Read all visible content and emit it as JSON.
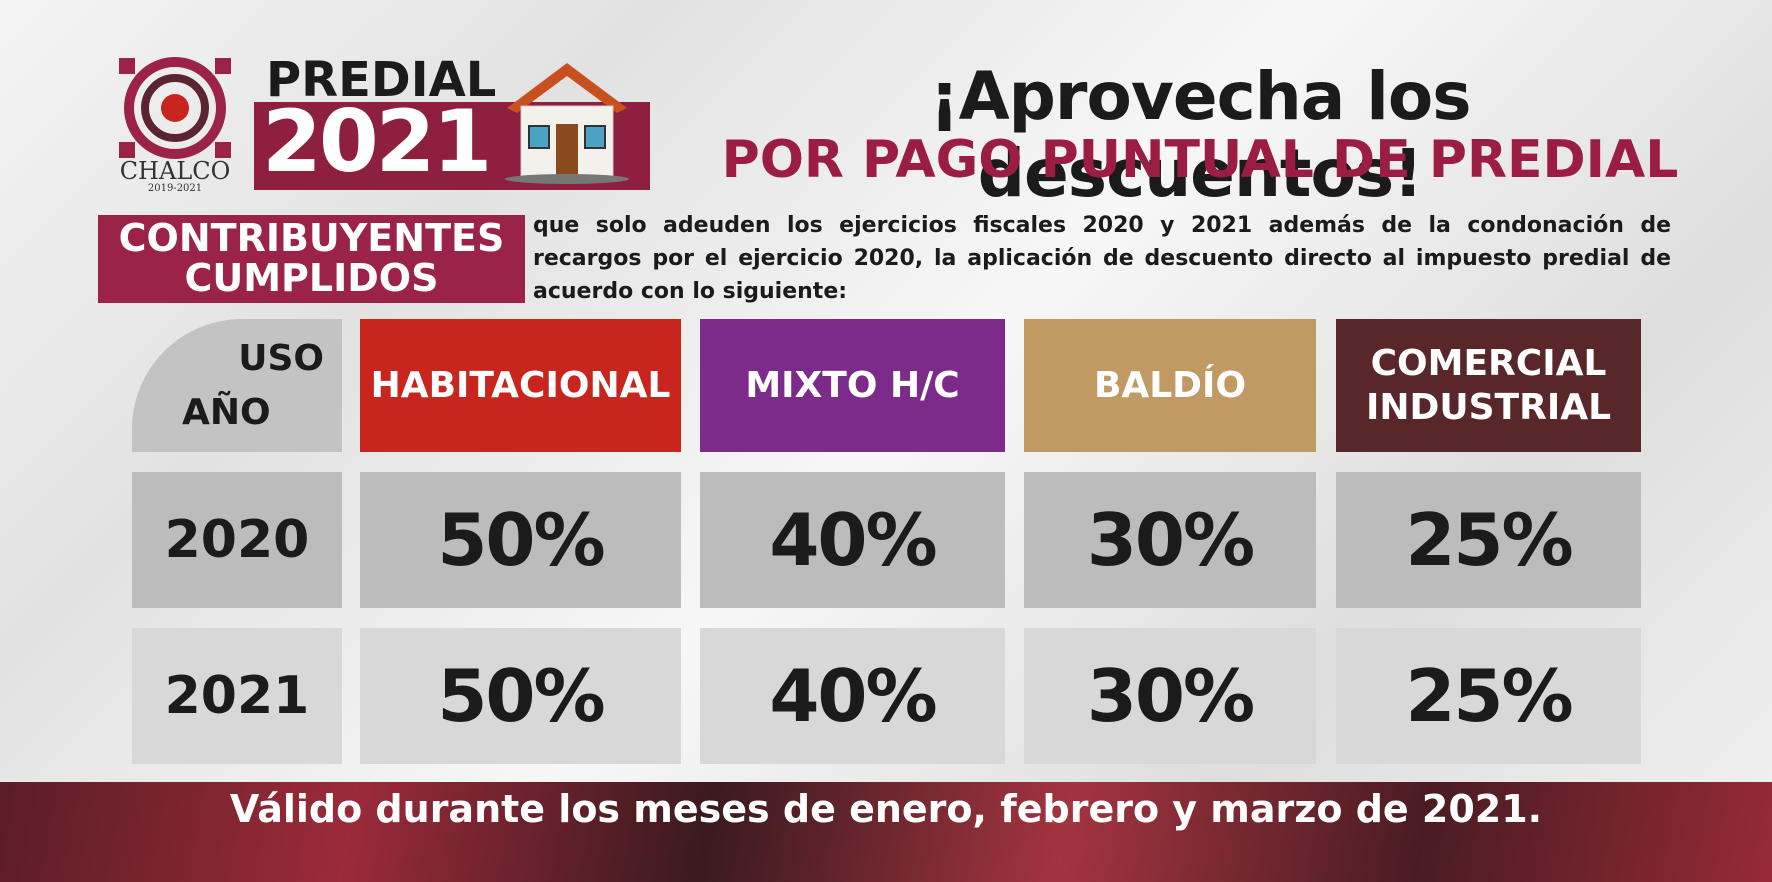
{
  "logo": {
    "name": "CHALCO",
    "years": "2019-2021"
  },
  "badge": {
    "label": "PREDIAL",
    "year": "2021"
  },
  "header": {
    "title": "¡Aprovecha los descuentos!",
    "subtitle": "POR PAGO PUNTUAL DE PREDIAL"
  },
  "intro": {
    "label_lines": [
      "CONTRIBUYENTES",
      "CUMPLIDOS"
    ],
    "text": "que solo adeuden los ejercicios fiscales 2020 y 2021 además de la condonación de recargos por el ejercicio 2020, la aplicación de descuento directo al impuesto predial de acuerdo con lo siguiente:"
  },
  "table": {
    "corner": [
      "USO",
      "AÑO"
    ],
    "columns": [
      [
        "HABITACIONAL"
      ],
      [
        "MIXTO H/C"
      ],
      [
        "BALDÍO"
      ],
      [
        "COMERCIAL",
        "INDUSTRIAL"
      ]
    ],
    "rows": [
      {
        "year": "2020",
        "values": [
          "50%",
          "40%",
          "30%",
          "25%"
        ]
      },
      {
        "year": "2021",
        "values": [
          "50%",
          "40%",
          "30%",
          "25%"
        ]
      }
    ]
  },
  "footer": "Válido durante los meses de enero, febrero y marzo de 2021."
}
